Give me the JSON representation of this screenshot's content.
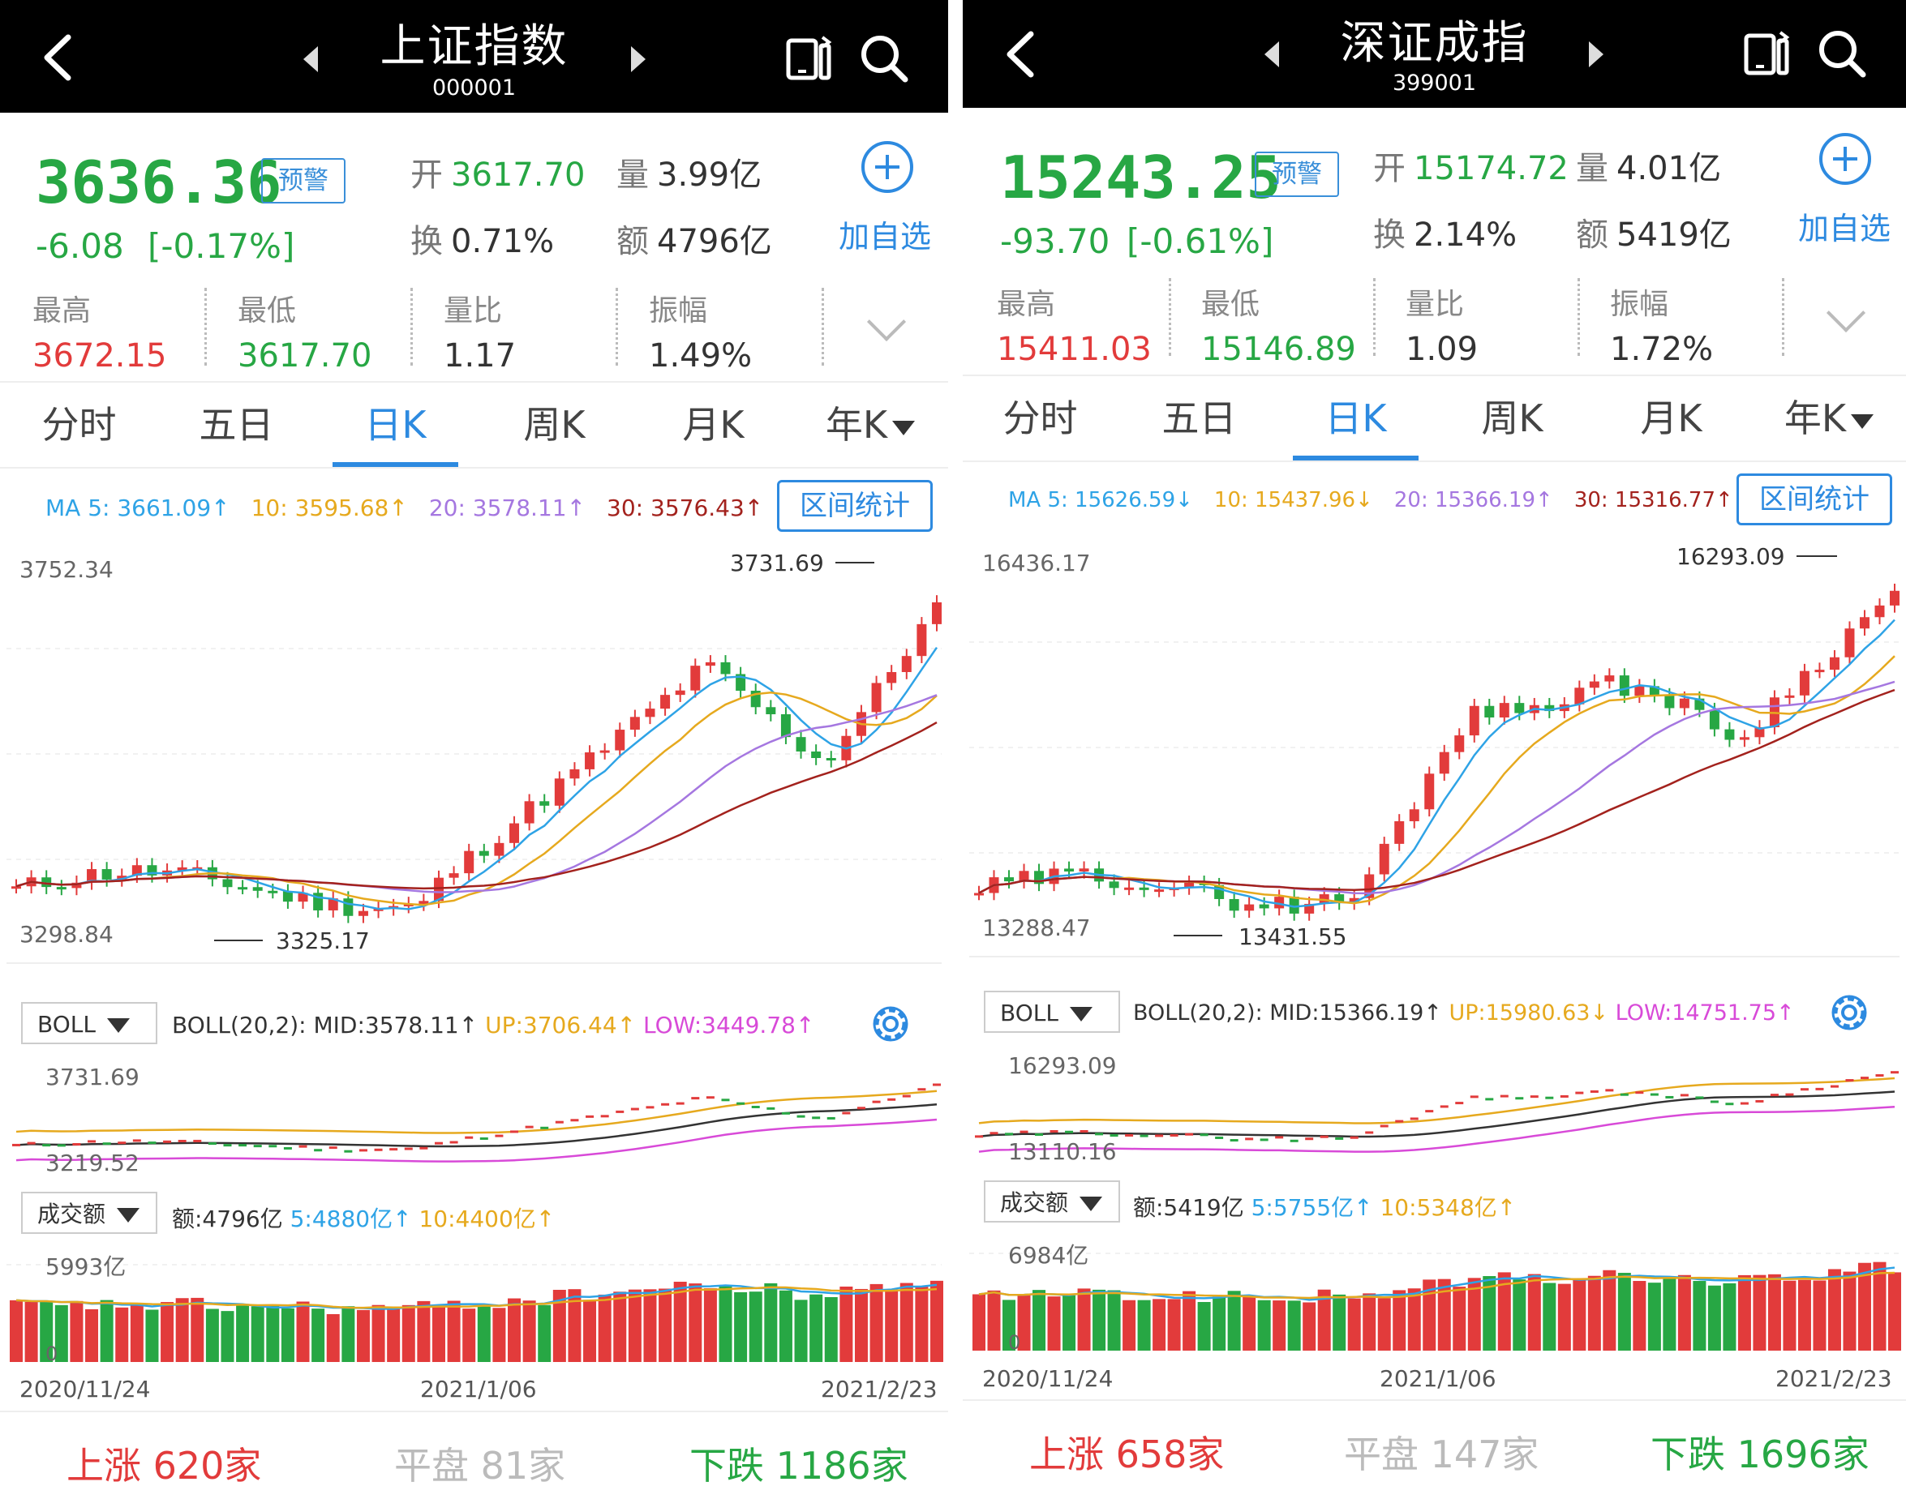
{
  "colors": {
    "up": "#e23b3b",
    "down": "#27a744",
    "accent": "#2d8ae0",
    "ma5": "#2ea3e6",
    "ma10": "#e6a91e",
    "ma20": "#a577e0",
    "ma30": "#a3221d",
    "boll_low": "#d84ad8"
  },
  "common": {
    "warn_label": "预警",
    "add_label": "加自选",
    "open_k": "开",
    "vol_k": "量",
    "turn_k": "换",
    "amount_k": "额",
    "high_k": "最高",
    "low_k": "最低",
    "ratio_k": "量比",
    "amp_k": "振幅",
    "tabs": [
      "分时",
      "五日",
      "日K",
      "周K",
      "月K",
      "年K"
    ],
    "active_tab": "日K",
    "range_button": "区间统计",
    "boll_select": "BOLL",
    "amount_select": "成交额",
    "breadth_up_k": "上涨",
    "breadth_flat_k": "平盘",
    "breadth_down_k": "下跌"
  },
  "left": {
    "title": "上证指数",
    "code": "000001",
    "price": "3636.36",
    "change": "-6.08",
    "change_pct": "[-0.17%]",
    "open": "3617.70",
    "volume": "3.99亿",
    "turnover": "0.71%",
    "amount": "4796亿",
    "high": "3672.15",
    "low": "3617.70",
    "vol_ratio": "1.17",
    "amplitude": "1.49%",
    "ma": {
      "ma5": "MA 5: 3661.09↑",
      "ma10": "10: 3595.68↑",
      "ma20": "20: 3578.11↑",
      "ma30": "30: 3576.43↑"
    },
    "k_top": "3752.34",
    "k_high_label": "3731.69",
    "k_bottom": "3298.84",
    "k_low_label": "3325.17",
    "boll": {
      "params": "BOLL(20,2):",
      "mid": "MID:3578.11↑",
      "up": "UP:3706.44↑",
      "low": "LOW:3449.78↑",
      "top": "3731.69",
      "bottom": "3219.52"
    },
    "amount_row": {
      "amt": "额:4796亿",
      "amt5": "5:4880亿↑",
      "amt10": "10:4400亿↑",
      "top": "5993亿",
      "zero": "0"
    },
    "dates": [
      "2020/11/24",
      "2021/1/06",
      "2021/2/23"
    ],
    "breadth": {
      "up": "620家",
      "flat": "81家",
      "down": "1186家"
    }
  },
  "right": {
    "title": "深证成指",
    "code": "399001",
    "price": "15243.25",
    "change": "-93.70",
    "change_pct": "[-0.61%]",
    "open": "15174.72",
    "volume": "4.01亿",
    "turnover": "2.14%",
    "amount": "5419亿",
    "high": "15411.03",
    "low": "15146.89",
    "vol_ratio": "1.09",
    "amplitude": "1.72%",
    "ma": {
      "ma5": "MA 5: 15626.59↓",
      "ma10": "10: 15437.96↓",
      "ma20": "20: 15366.19↑",
      "ma30": "30: 15316.77↑"
    },
    "k_top": "16436.17",
    "k_high_label": "16293.09",
    "k_bottom": "13288.47",
    "k_low_label": "13431.55",
    "boll": {
      "params": "BOLL(20,2):",
      "mid": "MID:15366.19↑",
      "up": "UP:15980.63↓",
      "low": "LOW:14751.75↑",
      "top": "16293.09",
      "bottom": "13110.16"
    },
    "amount_row": {
      "amt": "额:5419亿",
      "amt5": "5:5755亿↑",
      "amt10": "10:5348亿↑",
      "top": "6984亿",
      "zero": "0"
    },
    "dates": [
      "2020/11/24",
      "2021/1/06",
      "2021/2/23"
    ],
    "breadth": {
      "up": "658家",
      "flat": "147家",
      "down": "1696家"
    }
  }
}
